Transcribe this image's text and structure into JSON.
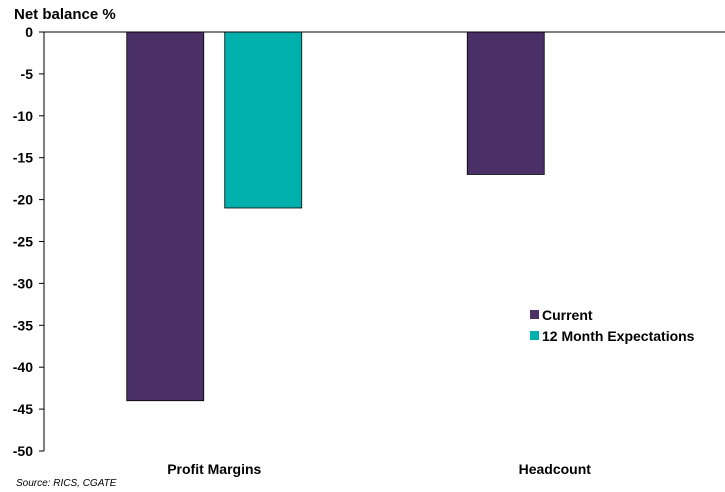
{
  "chart_data": {
    "type": "bar",
    "ylabel": "Net balance %",
    "categories": [
      "Profit Margins",
      "Headcount"
    ],
    "series": [
      {
        "name": "Current",
        "values": [
          -44,
          -17
        ],
        "color": "#4a3067"
      },
      {
        "name": "12 Month Expectations",
        "values": [
          -21,
          null
        ],
        "color": "#00b0ad"
      }
    ],
    "ylim": [
      -50,
      0
    ],
    "yticks": [
      0,
      -5,
      -10,
      -15,
      -20,
      -25,
      -30,
      -35,
      -40,
      -45,
      -50
    ],
    "grid": false,
    "legend_position": "right"
  },
  "source": "Source: RICS, CGATE"
}
